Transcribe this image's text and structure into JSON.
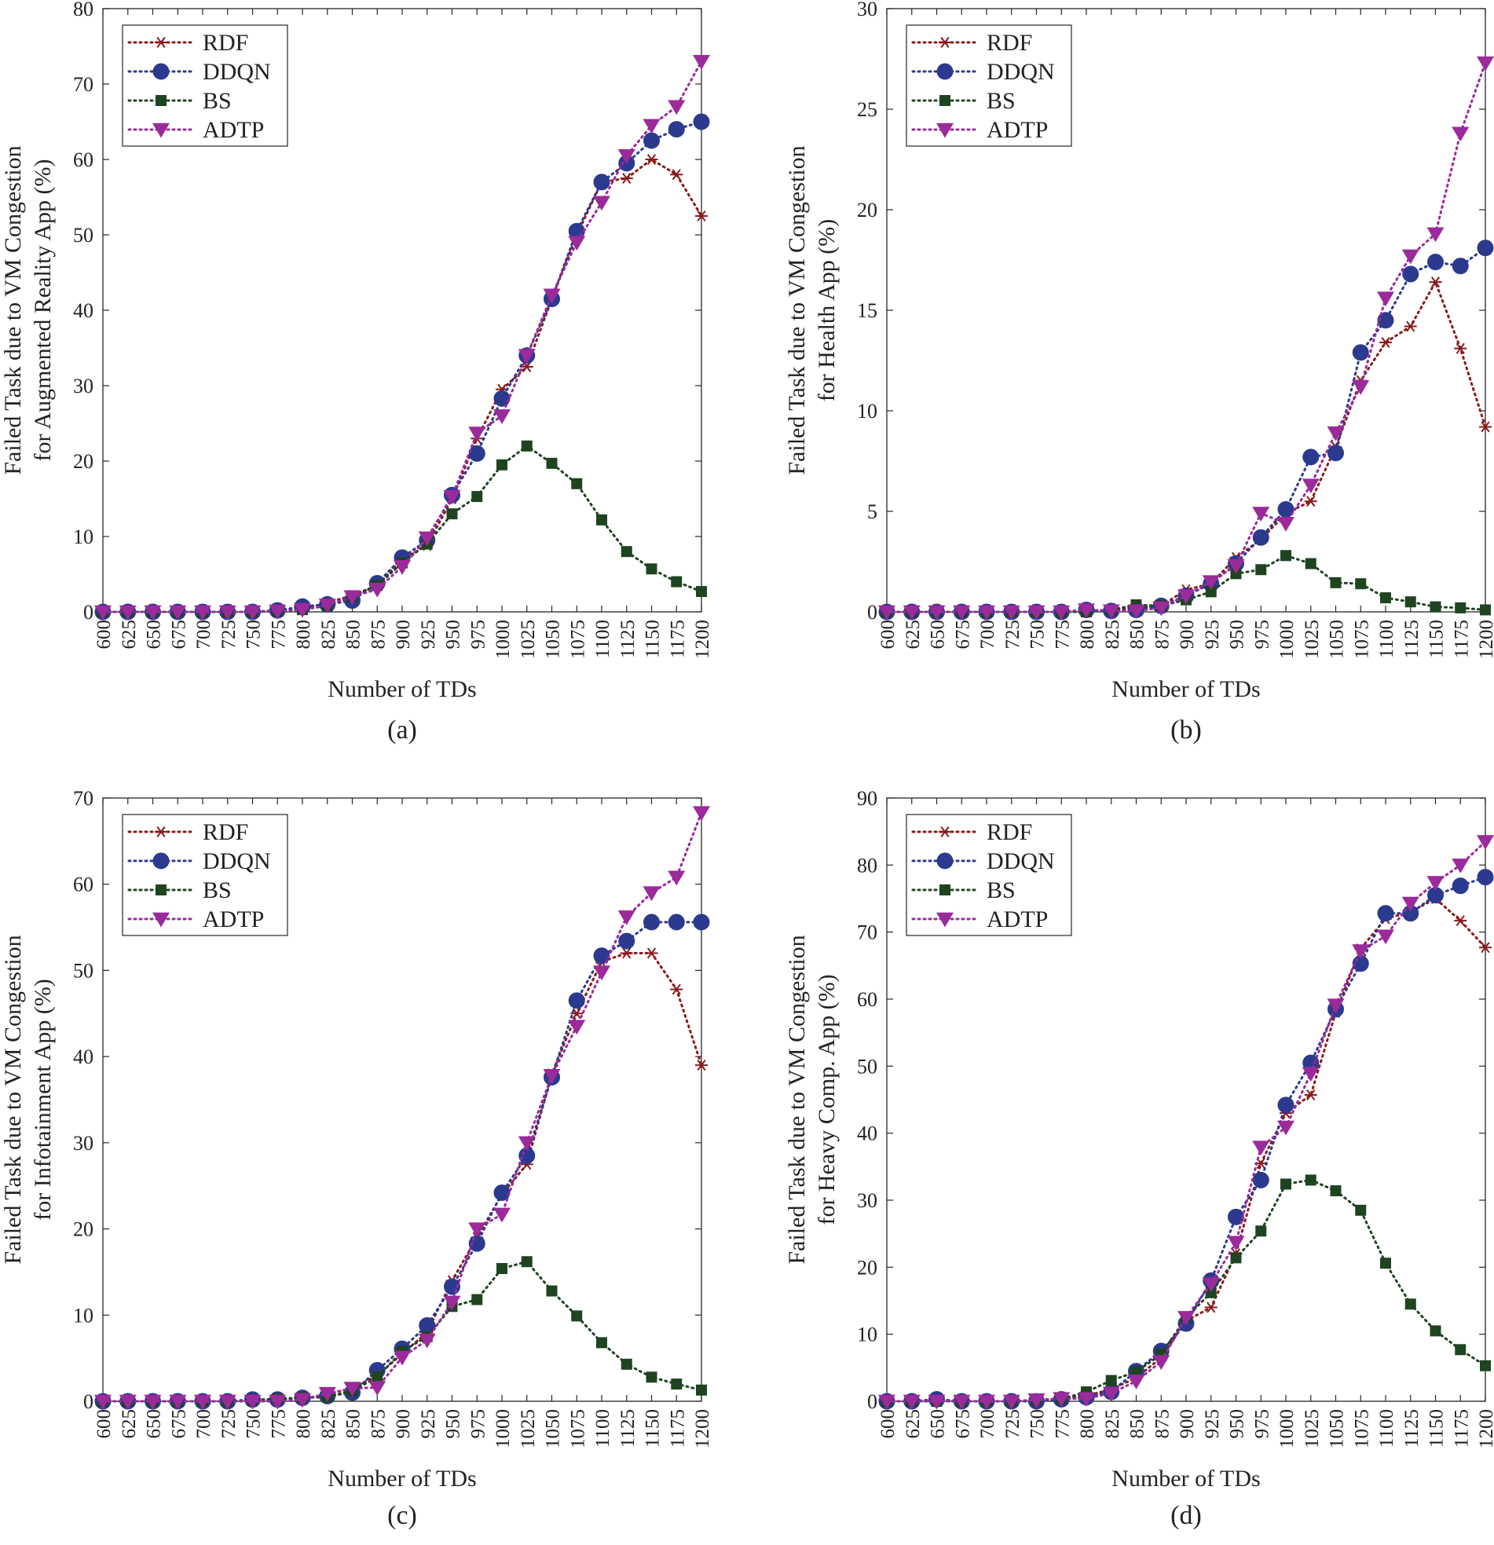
{
  "figure": {
    "legend_labels": [
      "RDF",
      "DDQN",
      "BS",
      "ADTP"
    ],
    "xlabel": "Number of TDs"
  },
  "series_style": {
    "RDF": {
      "color": "#8b1a1a",
      "marker": "asterisk"
    },
    "DDQN": {
      "color": "#2b3a8f",
      "marker": "circle"
    },
    "BS": {
      "color": "#1e4420",
      "marker": "square"
    },
    "ADTP": {
      "color": "#9b2a9b",
      "marker": "triangle-down"
    }
  },
  "chart_data": [
    {
      "type": "line",
      "panel_label": "(a)",
      "ylabel_line1": "Failed Task due to VM Congestion",
      "ylabel_line2": "for Augmented Reality App (%)",
      "xlabel": "Number of TDs",
      "x": [
        600,
        625,
        650,
        675,
        700,
        725,
        750,
        775,
        800,
        825,
        850,
        875,
        900,
        925,
        950,
        975,
        1000,
        1025,
        1050,
        1075,
        1100,
        1125,
        1150,
        1175,
        1200
      ],
      "ylim": [
        0,
        80
      ],
      "yticks": [
        0,
        10,
        20,
        30,
        40,
        50,
        60,
        70,
        80
      ],
      "legend": "top-left",
      "series": [
        {
          "name": "RDF",
          "values": [
            0,
            0,
            0,
            0,
            0,
            0,
            0,
            0.2,
            0.4,
            1.2,
            2.2,
            3.5,
            7,
            8.8,
            15,
            23,
            29.5,
            32.5,
            41.5,
            50,
            57,
            57.5,
            60,
            58,
            52.5
          ]
        },
        {
          "name": "DDQN",
          "values": [
            0,
            0,
            0,
            0,
            0,
            0,
            0,
            0.2,
            0.7,
            1,
            1.5,
            3.8,
            7.2,
            9.5,
            15.5,
            21,
            28.3,
            34,
            41.5,
            50.5,
            57,
            59.5,
            62.5,
            64,
            65
          ]
        },
        {
          "name": "BS",
          "values": [
            0,
            0,
            0,
            0,
            0,
            0,
            0,
            0.1,
            0.3,
            0.8,
            2,
            3.5,
            6.5,
            9,
            13,
            15.3,
            19.5,
            22,
            19.7,
            17,
            12.2,
            8,
            5.7,
            4,
            2.7
          ]
        },
        {
          "name": "ADTP",
          "values": [
            0,
            0,
            0,
            0,
            0,
            0,
            0,
            0.1,
            0.3,
            0.9,
            2,
            3,
            6,
            9.8,
            15.3,
            23.7,
            26,
            34,
            42,
            49,
            54.3,
            60.5,
            64.5,
            67,
            73
          ]
        }
      ]
    },
    {
      "type": "line",
      "panel_label": "(b)",
      "ylabel_line1": "Failed Task due to VM Congestion",
      "ylabel_line2": "for Health App (%)",
      "xlabel": "Number of TDs",
      "x": [
        600,
        625,
        650,
        675,
        700,
        725,
        750,
        775,
        800,
        825,
        850,
        875,
        900,
        925,
        950,
        975,
        1000,
        1025,
        1050,
        1075,
        1100,
        1125,
        1150,
        1175,
        1200
      ],
      "ylim": [
        0,
        30
      ],
      "yticks": [
        0,
        5,
        10,
        15,
        20,
        25,
        30
      ],
      "legend": "top-left",
      "series": [
        {
          "name": "RDF",
          "values": [
            0,
            0,
            0,
            0,
            0,
            0,
            0,
            0,
            0.05,
            0.1,
            0.2,
            0.3,
            1.1,
            1.4,
            2.7,
            3.6,
            4.9,
            5.5,
            8.2,
            11.5,
            13.4,
            14.2,
            16.4,
            13.1,
            9.2
          ]
        },
        {
          "name": "DDQN",
          "values": [
            0,
            0,
            0,
            0,
            0,
            0,
            0,
            0,
            0.1,
            0.05,
            0.1,
            0.3,
            0.8,
            1.4,
            2.4,
            3.7,
            5.1,
            7.7,
            7.9,
            12.9,
            14.5,
            16.8,
            17.4,
            17.2,
            18.1
          ]
        },
        {
          "name": "BS",
          "values": [
            0,
            0,
            0,
            0,
            0,
            0,
            0,
            0,
            0,
            0.1,
            0.35,
            0.3,
            0.6,
            1,
            1.9,
            2.1,
            2.8,
            2.4,
            1.45,
            1.4,
            0.7,
            0.5,
            0.25,
            0.2,
            0.1
          ]
        },
        {
          "name": "ADTP",
          "values": [
            0,
            0,
            0,
            0,
            0,
            0,
            0,
            0,
            0.1,
            0.05,
            0.05,
            0.2,
            0.8,
            1.5,
            2.3,
            4.9,
            4.4,
            6.3,
            8.9,
            11.2,
            15.6,
            17.7,
            18.8,
            23.8,
            27.3
          ]
        }
      ]
    },
    {
      "type": "line",
      "panel_label": "(c)",
      "ylabel_line1": "Failed Task due to VM Congestion",
      "ylabel_line2": "for Infotainment App (%)",
      "xlabel": "Number of TDs",
      "x": [
        600,
        625,
        650,
        675,
        700,
        725,
        750,
        775,
        800,
        825,
        850,
        875,
        900,
        925,
        950,
        975,
        1000,
        1025,
        1050,
        1075,
        1100,
        1125,
        1150,
        1175,
        1200
      ],
      "ylim": [
        0,
        70
      ],
      "yticks": [
        0,
        10,
        20,
        30,
        40,
        50,
        60,
        70
      ],
      "legend": "top-left",
      "series": [
        {
          "name": "RDF",
          "values": [
            0,
            0,
            0,
            0,
            0,
            0,
            0,
            0.1,
            0.3,
            0.8,
            1.5,
            3,
            5.5,
            8,
            14,
            19,
            24,
            27.5,
            38,
            45,
            51,
            52,
            52,
            47.8,
            39
          ]
        },
        {
          "name": "DDQN",
          "values": [
            0,
            0,
            0,
            0,
            0,
            0,
            0.2,
            0.2,
            0.4,
            0.6,
            1,
            3.6,
            6.1,
            8.8,
            13.3,
            18.3,
            24.2,
            28.5,
            37.6,
            46.5,
            51.7,
            53.4,
            55.6,
            55.6,
            55.6
          ]
        },
        {
          "name": "BS",
          "values": [
            0,
            0,
            0,
            0,
            0,
            0,
            0.1,
            0.3,
            0.4,
            0.5,
            1.2,
            2.8,
            5.8,
            7.5,
            11,
            11.8,
            15.4,
            16.2,
            12.8,
            9.9,
            6.8,
            4.3,
            2.8,
            2,
            1.3
          ]
        },
        {
          "name": "ADTP",
          "values": [
            0,
            0,
            0,
            0,
            0,
            0,
            0,
            0,
            0.2,
            0.9,
            1.5,
            1.6,
            5.1,
            7.1,
            11.5,
            20,
            21.7,
            30,
            37.8,
            43.5,
            49.8,
            56.2,
            59,
            60.8,
            68.3
          ]
        }
      ]
    },
    {
      "type": "line",
      "panel_label": "(d)",
      "ylabel_line1": "Failed Task due to VM Congestion",
      "ylabel_line2": "for Heavy Comp. App (%)",
      "xlabel": "Number of TDs",
      "x": [
        600,
        625,
        650,
        675,
        700,
        725,
        750,
        775,
        800,
        825,
        850,
        875,
        900,
        925,
        950,
        975,
        1000,
        1025,
        1050,
        1075,
        1100,
        1125,
        1150,
        1175,
        1200
      ],
      "ylim": [
        0,
        90
      ],
      "yticks": [
        0,
        10,
        20,
        30,
        40,
        50,
        60,
        70,
        80,
        90
      ],
      "legend": "top-left",
      "series": [
        {
          "name": "RDF",
          "values": [
            0,
            0,
            0,
            0,
            0,
            0,
            0.2,
            0.4,
            0.8,
            1.8,
            3.5,
            6.5,
            12,
            14,
            22,
            35.5,
            43,
            45.7,
            58,
            67.5,
            72,
            73,
            75,
            71.7,
            67.7
          ]
        },
        {
          "name": "DDQN",
          "values": [
            0,
            0,
            0.3,
            0,
            0,
            0,
            0,
            0.3,
            0.6,
            1.4,
            4.5,
            7.5,
            11.6,
            18,
            27.5,
            33,
            44.2,
            50.5,
            58.5,
            65.3,
            72.8,
            72.8,
            75.5,
            76.9,
            78.2
          ]
        },
        {
          "name": "BS",
          "values": [
            0,
            0,
            0,
            0,
            0,
            0,
            0.2,
            0.3,
            1.4,
            3.1,
            4.4,
            7,
            12.5,
            16.2,
            21.4,
            25.4,
            32.4,
            33,
            31.4,
            28.5,
            20.6,
            14.5,
            10.5,
            7.7,
            5.3
          ]
        },
        {
          "name": "ADTP",
          "values": [
            0,
            0,
            0,
            0,
            0,
            0,
            0.2,
            0.4,
            0.4,
            1.2,
            3,
            5.9,
            12.5,
            17.5,
            23.7,
            37.9,
            40.9,
            48.9,
            59.1,
            67.2,
            69.4,
            74.3,
            77.4,
            80,
            83.5
          ]
        }
      ]
    }
  ]
}
